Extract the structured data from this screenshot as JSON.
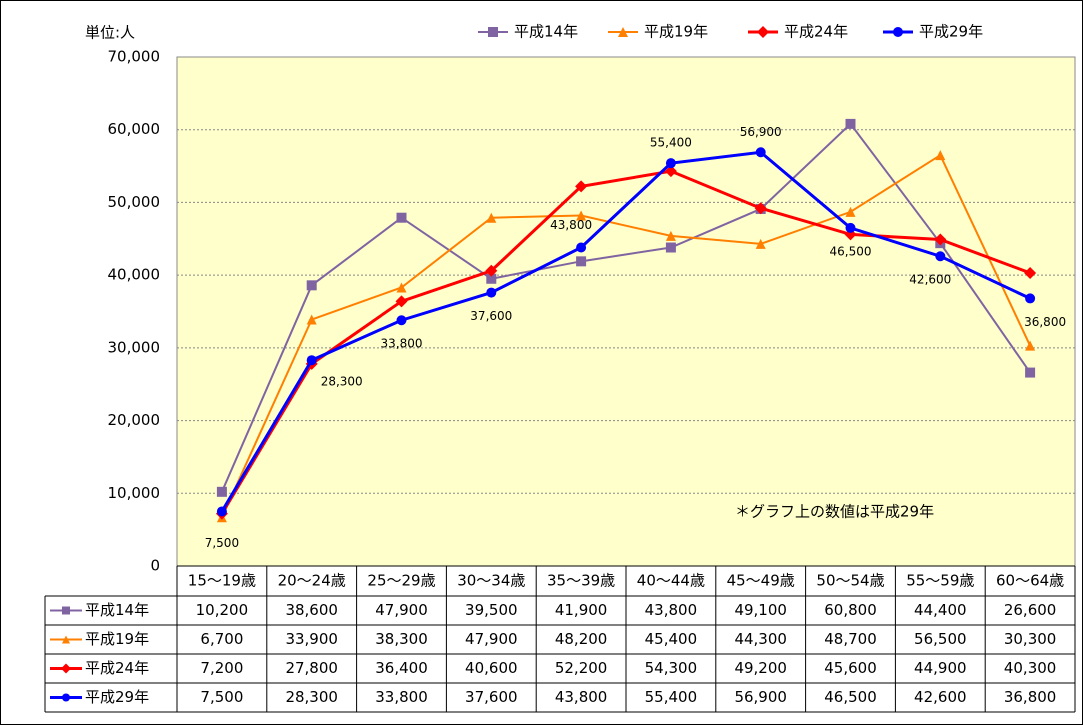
{
  "chart_data": {
    "type": "line",
    "unit_label": "単位:人",
    "annotation": "＊グラフ上の数値は平成29年",
    "categories": [
      "15～19歳",
      "20～24歳",
      "25～29歳",
      "30～34歳",
      "35～39歳",
      "40～44歳",
      "45～49歳",
      "50～54歳",
      "55～59歳",
      "60～64歳"
    ],
    "ylim": [
      0,
      70000
    ],
    "yticks": [
      0,
      {
        "value": 10000,
        "label": "10,000"
      },
      {
        "value": 20000,
        "label": "20,000"
      },
      {
        "value": 30000,
        "label": "30,000"
      },
      {
        "value": 40000,
        "label": "40,000"
      },
      {
        "value": 50000,
        "label": "50,000"
      },
      {
        "value": 60000,
        "label": "60,000"
      },
      {
        "value": 70000,
        "label": "70,000"
      }
    ],
    "grid": true,
    "legend": "top",
    "plot_background": "#ffffcc",
    "labeled_series": 3,
    "series": [
      {
        "name": "平成14年",
        "color": "#8064a2",
        "marker": "square",
        "values": [
          10200,
          38600,
          47900,
          39500,
          41900,
          43800,
          49100,
          60800,
          44400,
          26600
        ],
        "value_labels": [
          "10,200",
          "38,600",
          "47,900",
          "39,500",
          "41,900",
          "43,800",
          "49,100",
          "60,800",
          "44,400",
          "26,600"
        ]
      },
      {
        "name": "平成19年",
        "color": "#ff7f00",
        "marker": "triangle",
        "values": [
          6700,
          33900,
          38300,
          47900,
          48200,
          45400,
          44300,
          48700,
          56500,
          30300
        ],
        "value_labels": [
          "6,700",
          "33,900",
          "38,300",
          "47,900",
          "48,200",
          "45,400",
          "44,300",
          "48,700",
          "56,500",
          "30,300"
        ]
      },
      {
        "name": "平成24年",
        "color": "#ff0000",
        "marker": "diamond",
        "values": [
          7200,
          27800,
          36400,
          40600,
          52200,
          54300,
          49200,
          45600,
          44900,
          40300
        ],
        "value_labels": [
          "7,200",
          "27,800",
          "36,400",
          "40,600",
          "52,200",
          "54,300",
          "49,200",
          "45,600",
          "44,900",
          "40,300"
        ]
      },
      {
        "name": "平成29年",
        "color": "#0000ff",
        "marker": "circle",
        "values": [
          7500,
          28300,
          33800,
          37600,
          43800,
          55400,
          56900,
          46500,
          42600,
          36800
        ],
        "value_labels": [
          "7,500",
          "28,300",
          "33,800",
          "37,600",
          "43,800",
          "55,400",
          "56,900",
          "46,500",
          "42,600",
          "36,800"
        ]
      }
    ]
  }
}
